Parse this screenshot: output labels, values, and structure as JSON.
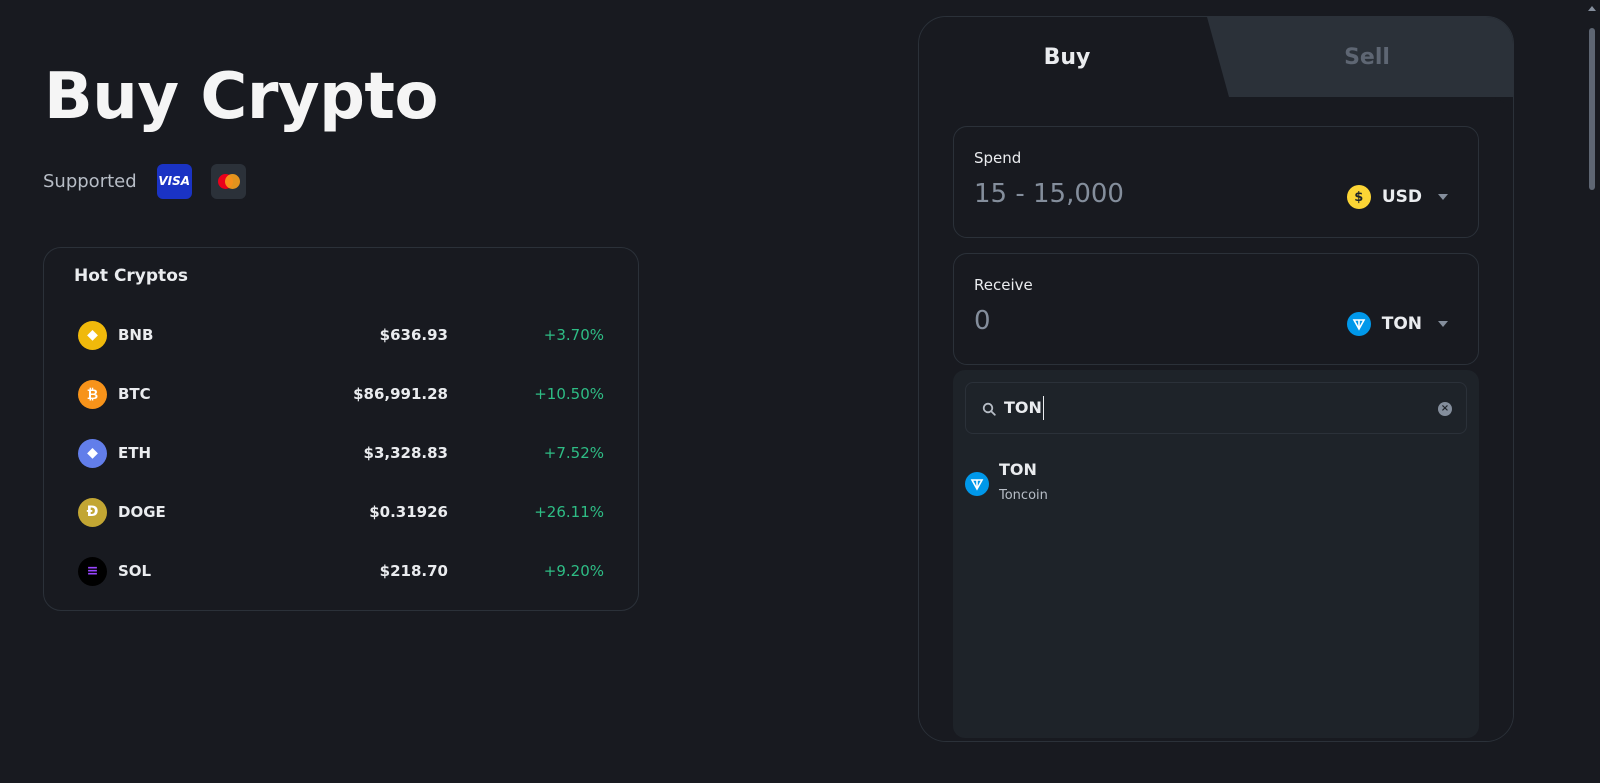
{
  "page": {
    "title": "Buy Crypto",
    "supported_label": "Supported",
    "payment_methods": [
      {
        "name": "VISA",
        "icon": "visa-logo"
      },
      {
        "name": "",
        "icon": "mastercard-logo"
      }
    ]
  },
  "hot_cryptos": {
    "title": "Hot Cryptos",
    "items": [
      {
        "symbol": "BNB",
        "price": "$636.93",
        "change": "+3.70%",
        "icon_color": "#f0b90b",
        "icon_glyph": "◆"
      },
      {
        "symbol": "BTC",
        "price": "$86,991.28",
        "change": "+10.50%",
        "icon_color": "#f7931a",
        "icon_glyph": "₿"
      },
      {
        "symbol": "ETH",
        "price": "$3,328.83",
        "change": "+7.52%",
        "icon_color": "#627eea",
        "icon_glyph": "◆"
      },
      {
        "symbol": "DOGE",
        "price": "$0.31926",
        "change": "+26.11%",
        "icon_color": "#c2a633",
        "icon_glyph": "Ð"
      },
      {
        "symbol": "SOL",
        "price": "$218.70",
        "change": "+9.20%",
        "icon_color": "#000000",
        "icon_glyph": "≡"
      }
    ]
  },
  "trade_panel": {
    "tabs": {
      "buy": "Buy",
      "sell": "Sell"
    },
    "spend": {
      "label": "Spend",
      "placeholder": "15 - 15,000",
      "currency": "USD",
      "currency_icon": "dollar-coin-icon"
    },
    "receive": {
      "label": "Receive",
      "value": "0",
      "currency": "TON",
      "currency_icon": "ton-icon"
    },
    "search": {
      "value": "TON"
    },
    "results": [
      {
        "symbol": "TON",
        "name": "Toncoin",
        "icon": "ton-icon"
      }
    ]
  }
}
